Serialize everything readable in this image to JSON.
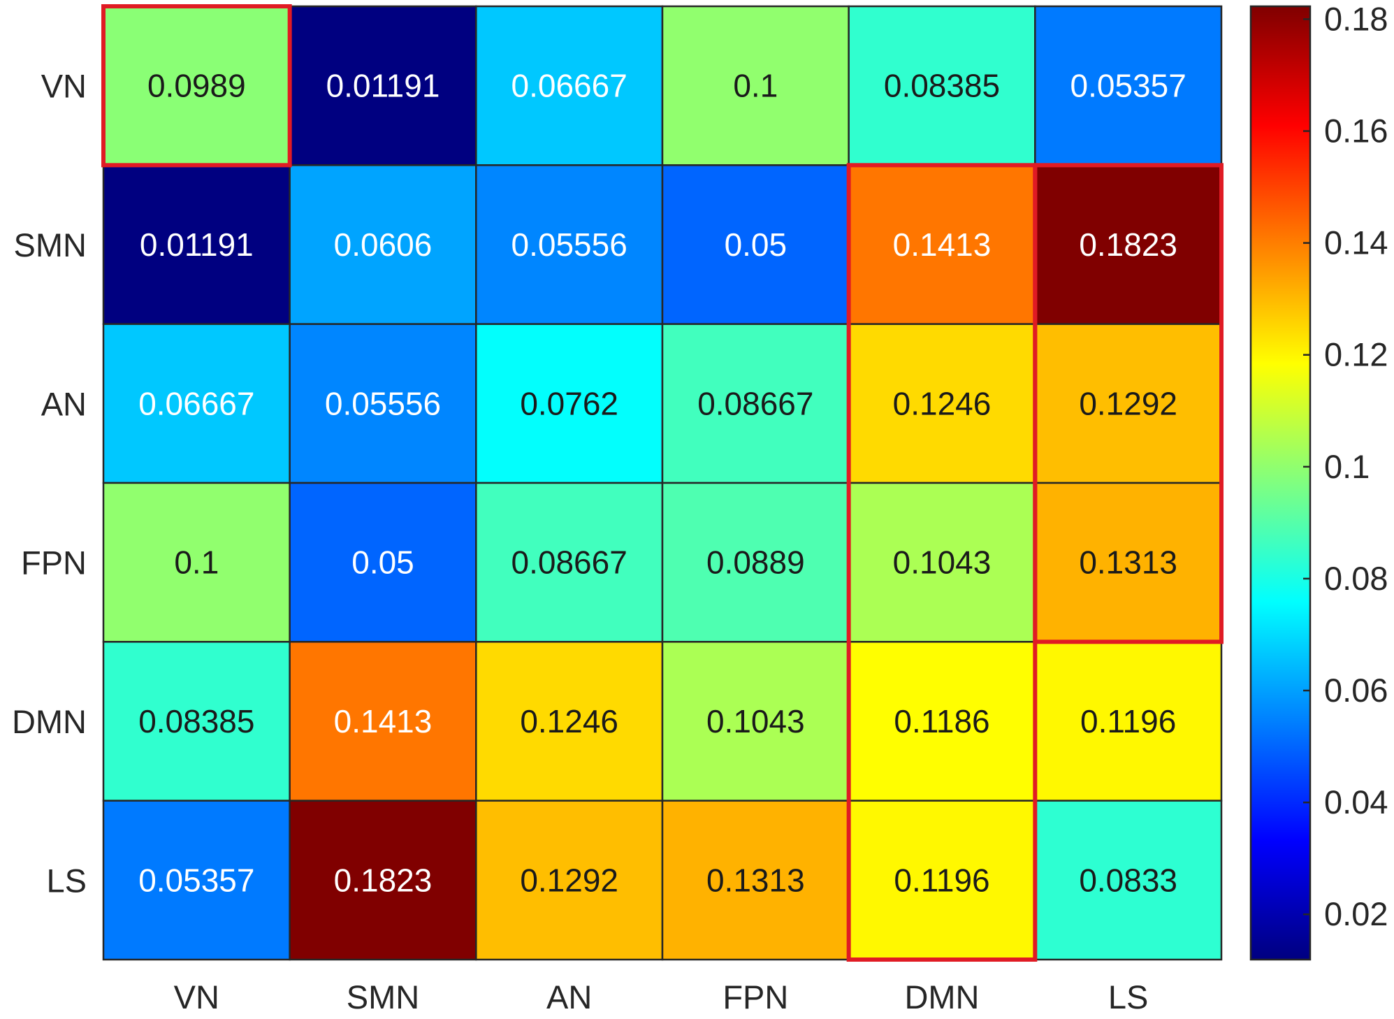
{
  "chart_data": {
    "type": "heatmap",
    "title": "",
    "xlabel": "",
    "ylabel": "",
    "x_categories": [
      "VN",
      "SMN",
      "AN",
      "FPN",
      "DMN",
      "LS"
    ],
    "y_categories": [
      "VN",
      "SMN",
      "AN",
      "FPN",
      "DMN",
      "LS"
    ],
    "values": [
      [
        0.0989,
        0.01191,
        0.06667,
        0.1,
        0.08385,
        0.05357
      ],
      [
        0.01191,
        0.0606,
        0.05556,
        0.05,
        0.1413,
        0.1823
      ],
      [
        0.06667,
        0.05556,
        0.0762,
        0.08667,
        0.1246,
        0.1292
      ],
      [
        0.1,
        0.05,
        0.08667,
        0.0889,
        0.1043,
        0.1313
      ],
      [
        0.08385,
        0.1413,
        0.1246,
        0.1043,
        0.1186,
        0.1196
      ],
      [
        0.05357,
        0.1823,
        0.1292,
        0.1313,
        0.1196,
        0.0833
      ]
    ],
    "value_labels": [
      [
        "0.0989",
        "0.01191",
        "0.06667",
        "0.1",
        "0.08385",
        "0.05357"
      ],
      [
        "0.01191",
        "0.0606",
        "0.05556",
        "0.05",
        "0.1413",
        "0.1823"
      ],
      [
        "0.06667",
        "0.05556",
        "0.0762",
        "0.08667",
        "0.1246",
        "0.1292"
      ],
      [
        "0.1",
        "0.05",
        "0.08667",
        "0.0889",
        "0.1043",
        "0.1313"
      ],
      [
        "0.08385",
        "0.1413",
        "0.1246",
        "0.1043",
        "0.1186",
        "0.1196"
      ],
      [
        "0.05357",
        "0.1823",
        "0.1292",
        "0.1313",
        "0.1196",
        "0.0833"
      ]
    ],
    "colormap": "jet",
    "color_range": [
      0.01191,
      0.1823
    ],
    "colorbar": {
      "location": "right",
      "ticks": [
        0.02,
        0.04,
        0.06,
        0.08,
        0.1,
        0.12,
        0.14,
        0.16,
        0.18
      ],
      "tick_labels": [
        "0.02",
        "0.04",
        "0.06",
        "0.08",
        "0.1",
        "0.12",
        "0.14",
        "0.16",
        "0.18"
      ]
    },
    "highlight_color": "#e01b24",
    "highlight_boxes": [
      {
        "rows": [
          0,
          0
        ],
        "cols": [
          0,
          0
        ]
      },
      {
        "rows": [
          1,
          5
        ],
        "cols": [
          4,
          4
        ]
      },
      {
        "rows": [
          1,
          3
        ],
        "cols": [
          5,
          5
        ]
      }
    ]
  }
}
